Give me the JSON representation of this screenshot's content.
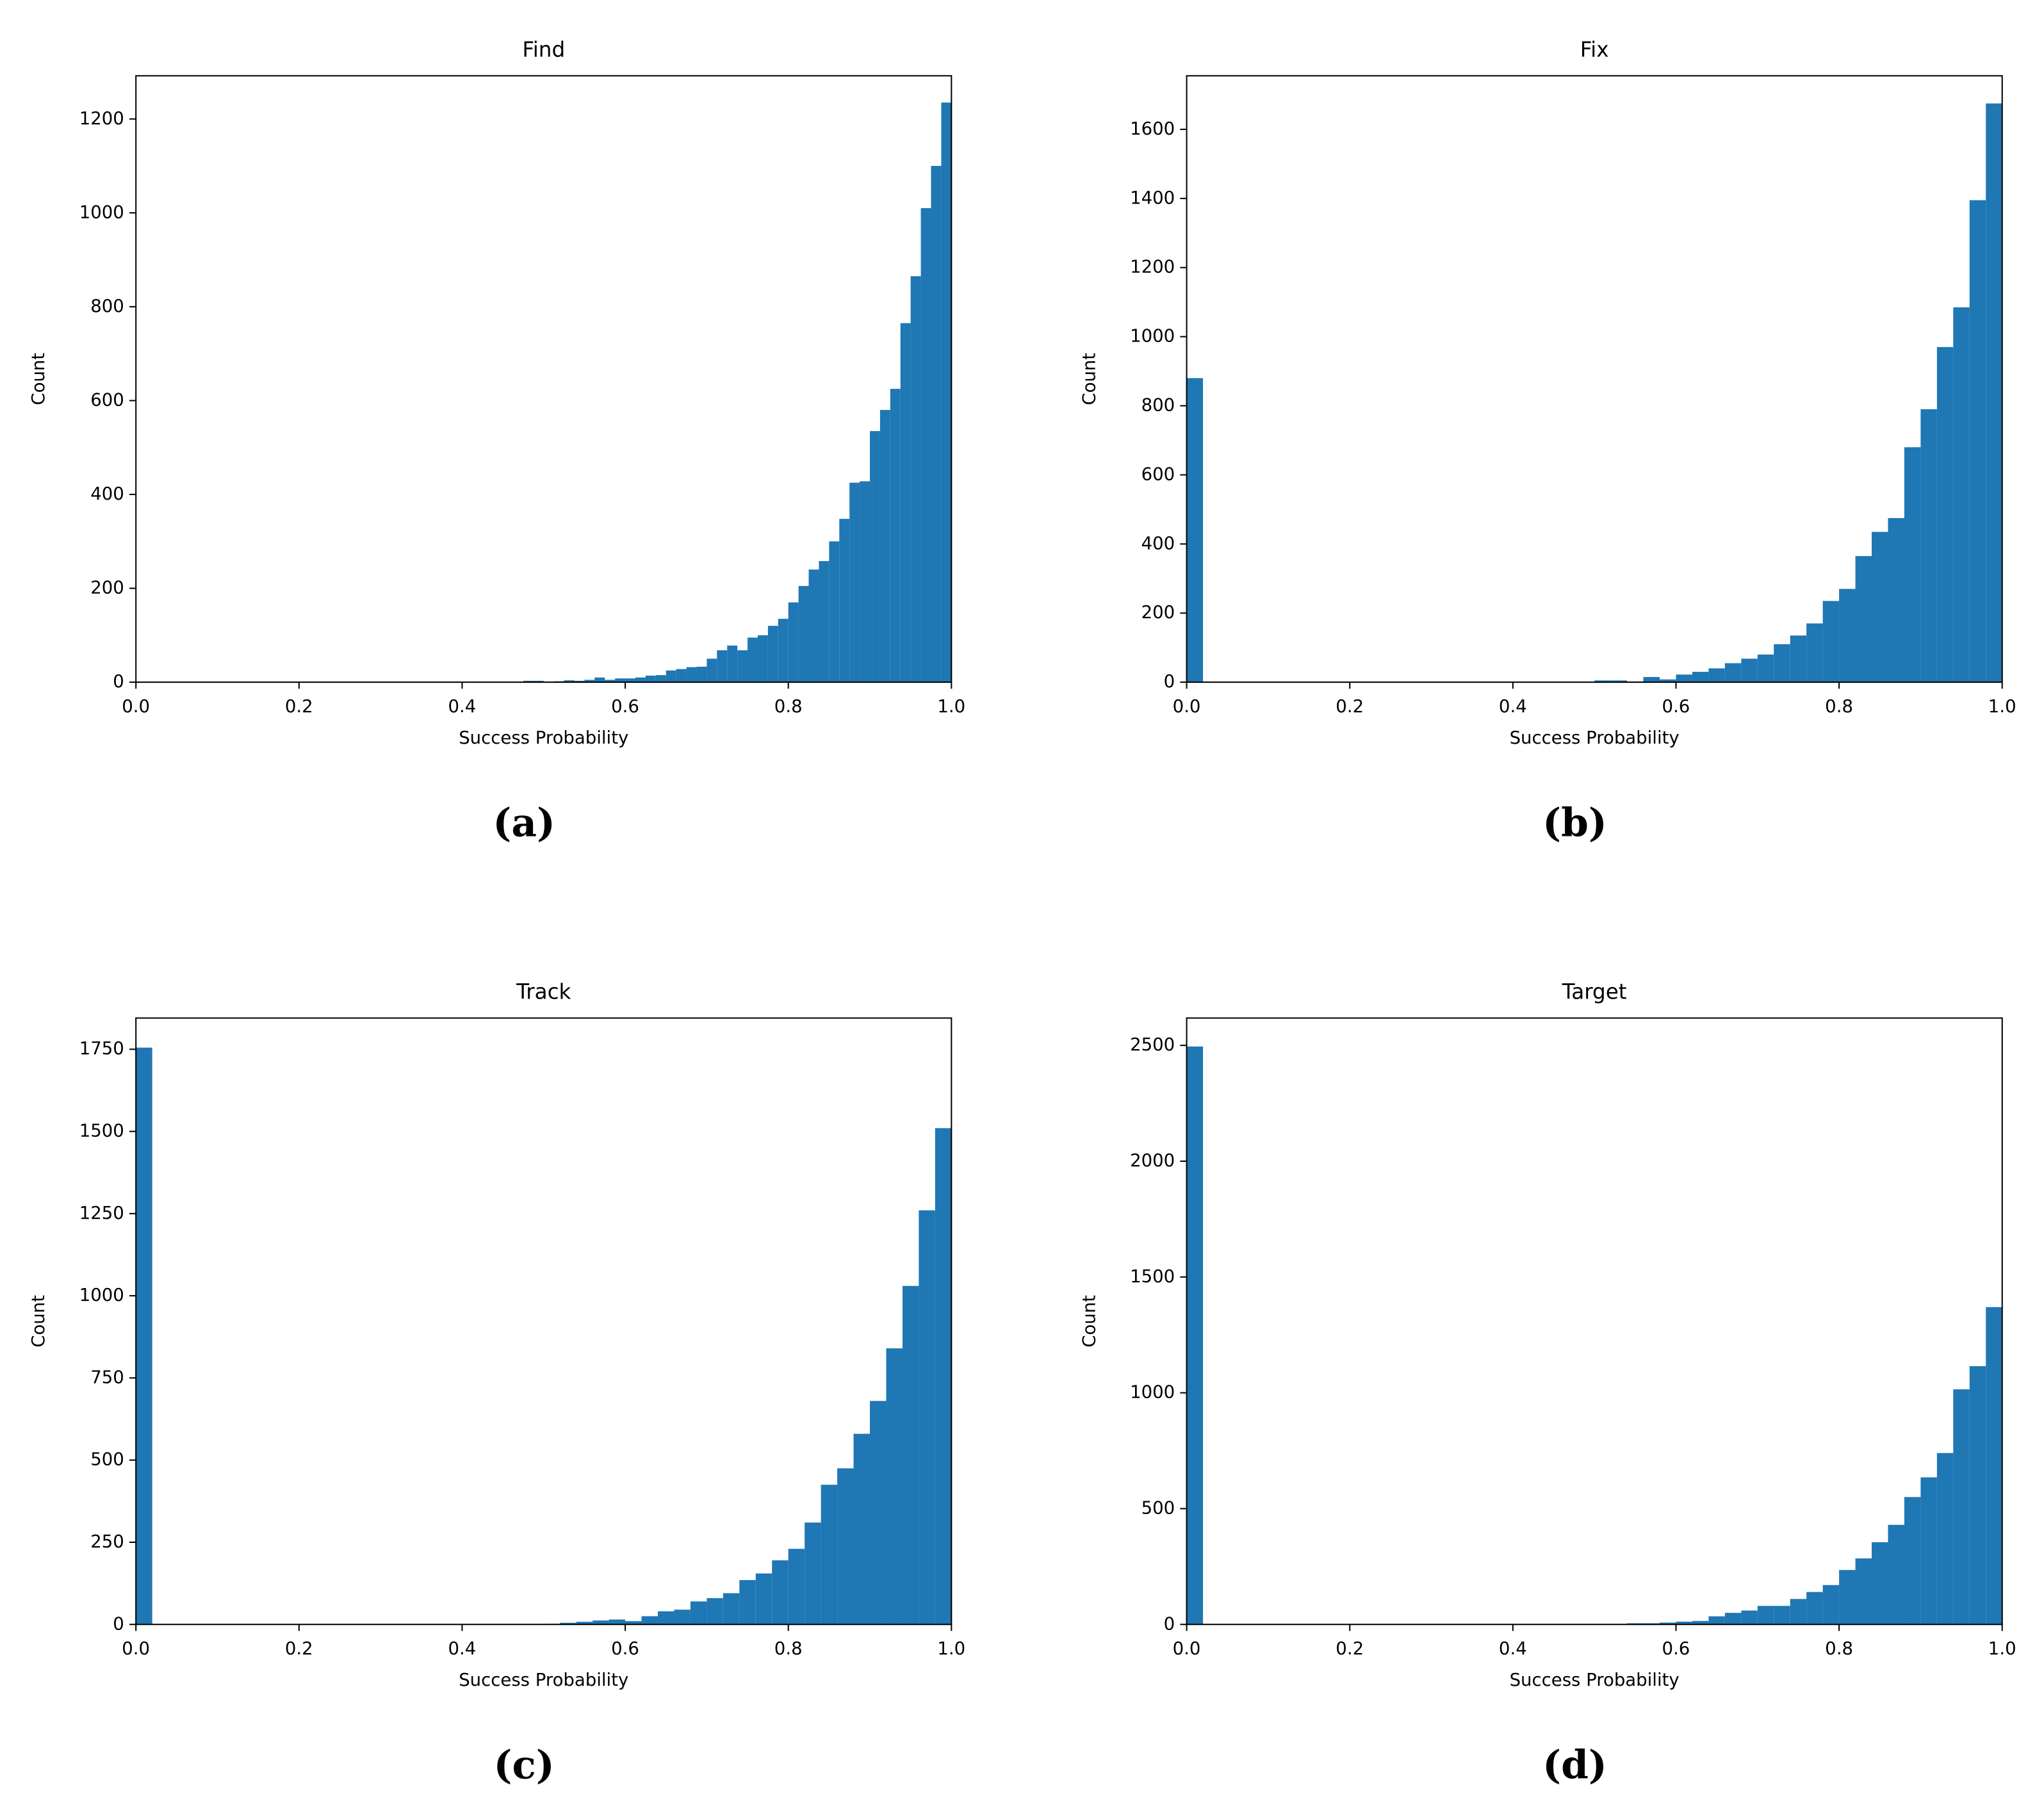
{
  "chart_data": [
    {
      "type": "histogram",
      "title": "Find",
      "caption": "(a)",
      "xlabel": "Success Probability",
      "ylabel": "Count",
      "color": "#1f77b4",
      "bins": [
        0.475,
        0.4875,
        0.5,
        0.5125,
        0.525,
        0.5375,
        0.55,
        0.5625,
        0.575,
        0.5875,
        0.6,
        0.6125,
        0.625,
        0.6375,
        0.65,
        0.6625,
        0.675,
        0.6875,
        0.7,
        0.7125,
        0.725,
        0.7375,
        0.75,
        0.7625,
        0.775,
        0.7875,
        0.8,
        0.8125,
        0.825,
        0.8375,
        0.85,
        0.8625,
        0.875,
        0.8875,
        0.9,
        0.9125,
        0.925,
        0.9375,
        0.95,
        0.9625,
        0.975,
        0.9875,
        1.0
      ],
      "values": [
        3,
        3,
        0,
        2,
        4,
        3,
        5,
        10,
        5,
        8,
        8,
        10,
        14,
        15,
        25,
        28,
        32,
        33,
        50,
        68,
        78,
        68,
        95,
        100,
        120,
        135,
        170,
        205,
        240,
        258,
        300,
        348,
        425,
        428,
        535,
        580,
        625,
        765,
        865,
        1010,
        1100,
        1235
      ],
      "xlim": [
        0,
        1
      ],
      "ylim": [
        0,
        1292
      ],
      "xticks": [
        {
          "value": 0,
          "label": "0.0"
        },
        0.2,
        0.4,
        0.6,
        0.8,
        {
          "value": 1,
          "label": "1.0"
        }
      ],
      "yticks": [
        0,
        200,
        400,
        600,
        800,
        1000,
        1200
      ]
    },
    {
      "type": "histogram",
      "title": "Fix",
      "caption": "(b)",
      "xlabel": "Success Probability",
      "ylabel": "Count",
      "color": "#1f77b4",
      "bins": [
        0,
        0.02,
        0.04,
        0.06,
        0.08,
        0.1,
        0.12,
        0.14,
        0.16,
        0.18,
        0.2,
        0.22,
        0.24,
        0.26,
        0.28,
        0.3,
        0.32,
        0.34,
        0.36,
        0.38,
        0.4,
        0.42,
        0.44,
        0.46,
        0.48,
        0.5,
        0.52,
        0.54,
        0.56,
        0.58,
        0.6,
        0.62,
        0.64,
        0.66,
        0.68,
        0.7,
        0.72,
        0.74,
        0.76,
        0.78,
        0.8,
        0.82,
        0.84,
        0.86,
        0.88,
        0.9,
        0.92,
        0.94,
        0.96,
        0.98,
        1.0
      ],
      "values": [
        880,
        0,
        0,
        0,
        0,
        0,
        0,
        0,
        0,
        0,
        0,
        0,
        0,
        0,
        0,
        0,
        0,
        0,
        0,
        0,
        0,
        0,
        0,
        0,
        0,
        5,
        5,
        2,
        15,
        8,
        22,
        30,
        40,
        55,
        68,
        80,
        110,
        135,
        170,
        235,
        270,
        365,
        435,
        475,
        680,
        790,
        970,
        1085,
        1395,
        1675
      ],
      "xlim": [
        0,
        1
      ],
      "ylim": [
        0,
        1755
      ],
      "xticks": [
        {
          "value": 0,
          "label": "0.0"
        },
        0.2,
        0.4,
        0.6,
        0.8,
        {
          "value": 1,
          "label": "1.0"
        }
      ],
      "yticks": [
        0,
        200,
        400,
        600,
        800,
        1000,
        1200,
        1400,
        1600
      ]
    },
    {
      "type": "histogram",
      "title": "Track",
      "caption": "(c)",
      "xlabel": "Success Probability",
      "ylabel": "Count",
      "color": "#1f77b4",
      "bins": [
        0,
        0.02,
        0.04,
        0.06,
        0.08,
        0.1,
        0.12,
        0.14,
        0.16,
        0.18,
        0.2,
        0.22,
        0.24,
        0.26,
        0.28,
        0.3,
        0.32,
        0.34,
        0.36,
        0.38,
        0.4,
        0.42,
        0.44,
        0.46,
        0.48,
        0.5,
        0.52,
        0.54,
        0.56,
        0.58,
        0.6,
        0.62,
        0.64,
        0.66,
        0.68,
        0.7,
        0.72,
        0.74,
        0.76,
        0.78,
        0.8,
        0.82,
        0.84,
        0.86,
        0.88,
        0.9,
        0.92,
        0.94,
        0.96,
        0.98,
        1.0
      ],
      "values": [
        1755,
        0,
        0,
        0,
        0,
        0,
        0,
        0,
        0,
        0,
        0,
        0,
        0,
        0,
        0,
        0,
        0,
        0,
        0,
        0,
        0,
        0,
        0,
        0,
        0,
        2,
        5,
        8,
        12,
        15,
        10,
        25,
        40,
        45,
        70,
        80,
        95,
        135,
        155,
        195,
        230,
        310,
        425,
        475,
        580,
        680,
        840,
        1030,
        1260,
        1510
      ],
      "xlim": [
        0,
        1
      ],
      "ylim": [
        0,
        1845
      ],
      "xticks": [
        {
          "value": 0,
          "label": "0.0"
        },
        0.2,
        0.4,
        0.6,
        0.8,
        {
          "value": 1,
          "label": "1.0"
        }
      ],
      "yticks": [
        0,
        250,
        500,
        750,
        1000,
        1250,
        1500,
        1750
      ]
    },
    {
      "type": "histogram",
      "title": "Target",
      "caption": "(d)",
      "xlabel": "Success Probability",
      "ylabel": "Count",
      "color": "#1f77b4",
      "bins": [
        0,
        0.02,
        0.04,
        0.06,
        0.08,
        0.1,
        0.12,
        0.14,
        0.16,
        0.18,
        0.2,
        0.22,
        0.24,
        0.26,
        0.28,
        0.3,
        0.32,
        0.34,
        0.36,
        0.38,
        0.4,
        0.42,
        0.44,
        0.46,
        0.48,
        0.5,
        0.52,
        0.54,
        0.56,
        0.58,
        0.6,
        0.62,
        0.64,
        0.66,
        0.68,
        0.7,
        0.72,
        0.74,
        0.76,
        0.78,
        0.8,
        0.82,
        0.84,
        0.86,
        0.88,
        0.9,
        0.92,
        0.94,
        0.96,
        0.98,
        1.0
      ],
      "values": [
        2495,
        0,
        0,
        0,
        0,
        0,
        0,
        0,
        0,
        0,
        0,
        0,
        0,
        0,
        0,
        0,
        0,
        0,
        0,
        0,
        0,
        0,
        0,
        0,
        0,
        0,
        0,
        5,
        5,
        8,
        12,
        15,
        35,
        50,
        60,
        80,
        80,
        110,
        140,
        170,
        235,
        285,
        355,
        430,
        550,
        635,
        740,
        1015,
        1115,
        1370
      ],
      "xlim": [
        0,
        1
      ],
      "ylim": [
        0,
        2618
      ],
      "xticks": [
        {
          "value": 0,
          "label": "0.0"
        },
        0.2,
        0.4,
        0.6,
        0.8,
        {
          "value": 1,
          "label": "1.0"
        }
      ],
      "yticks": [
        0,
        500,
        1000,
        1500,
        2000,
        2500
      ]
    }
  ]
}
